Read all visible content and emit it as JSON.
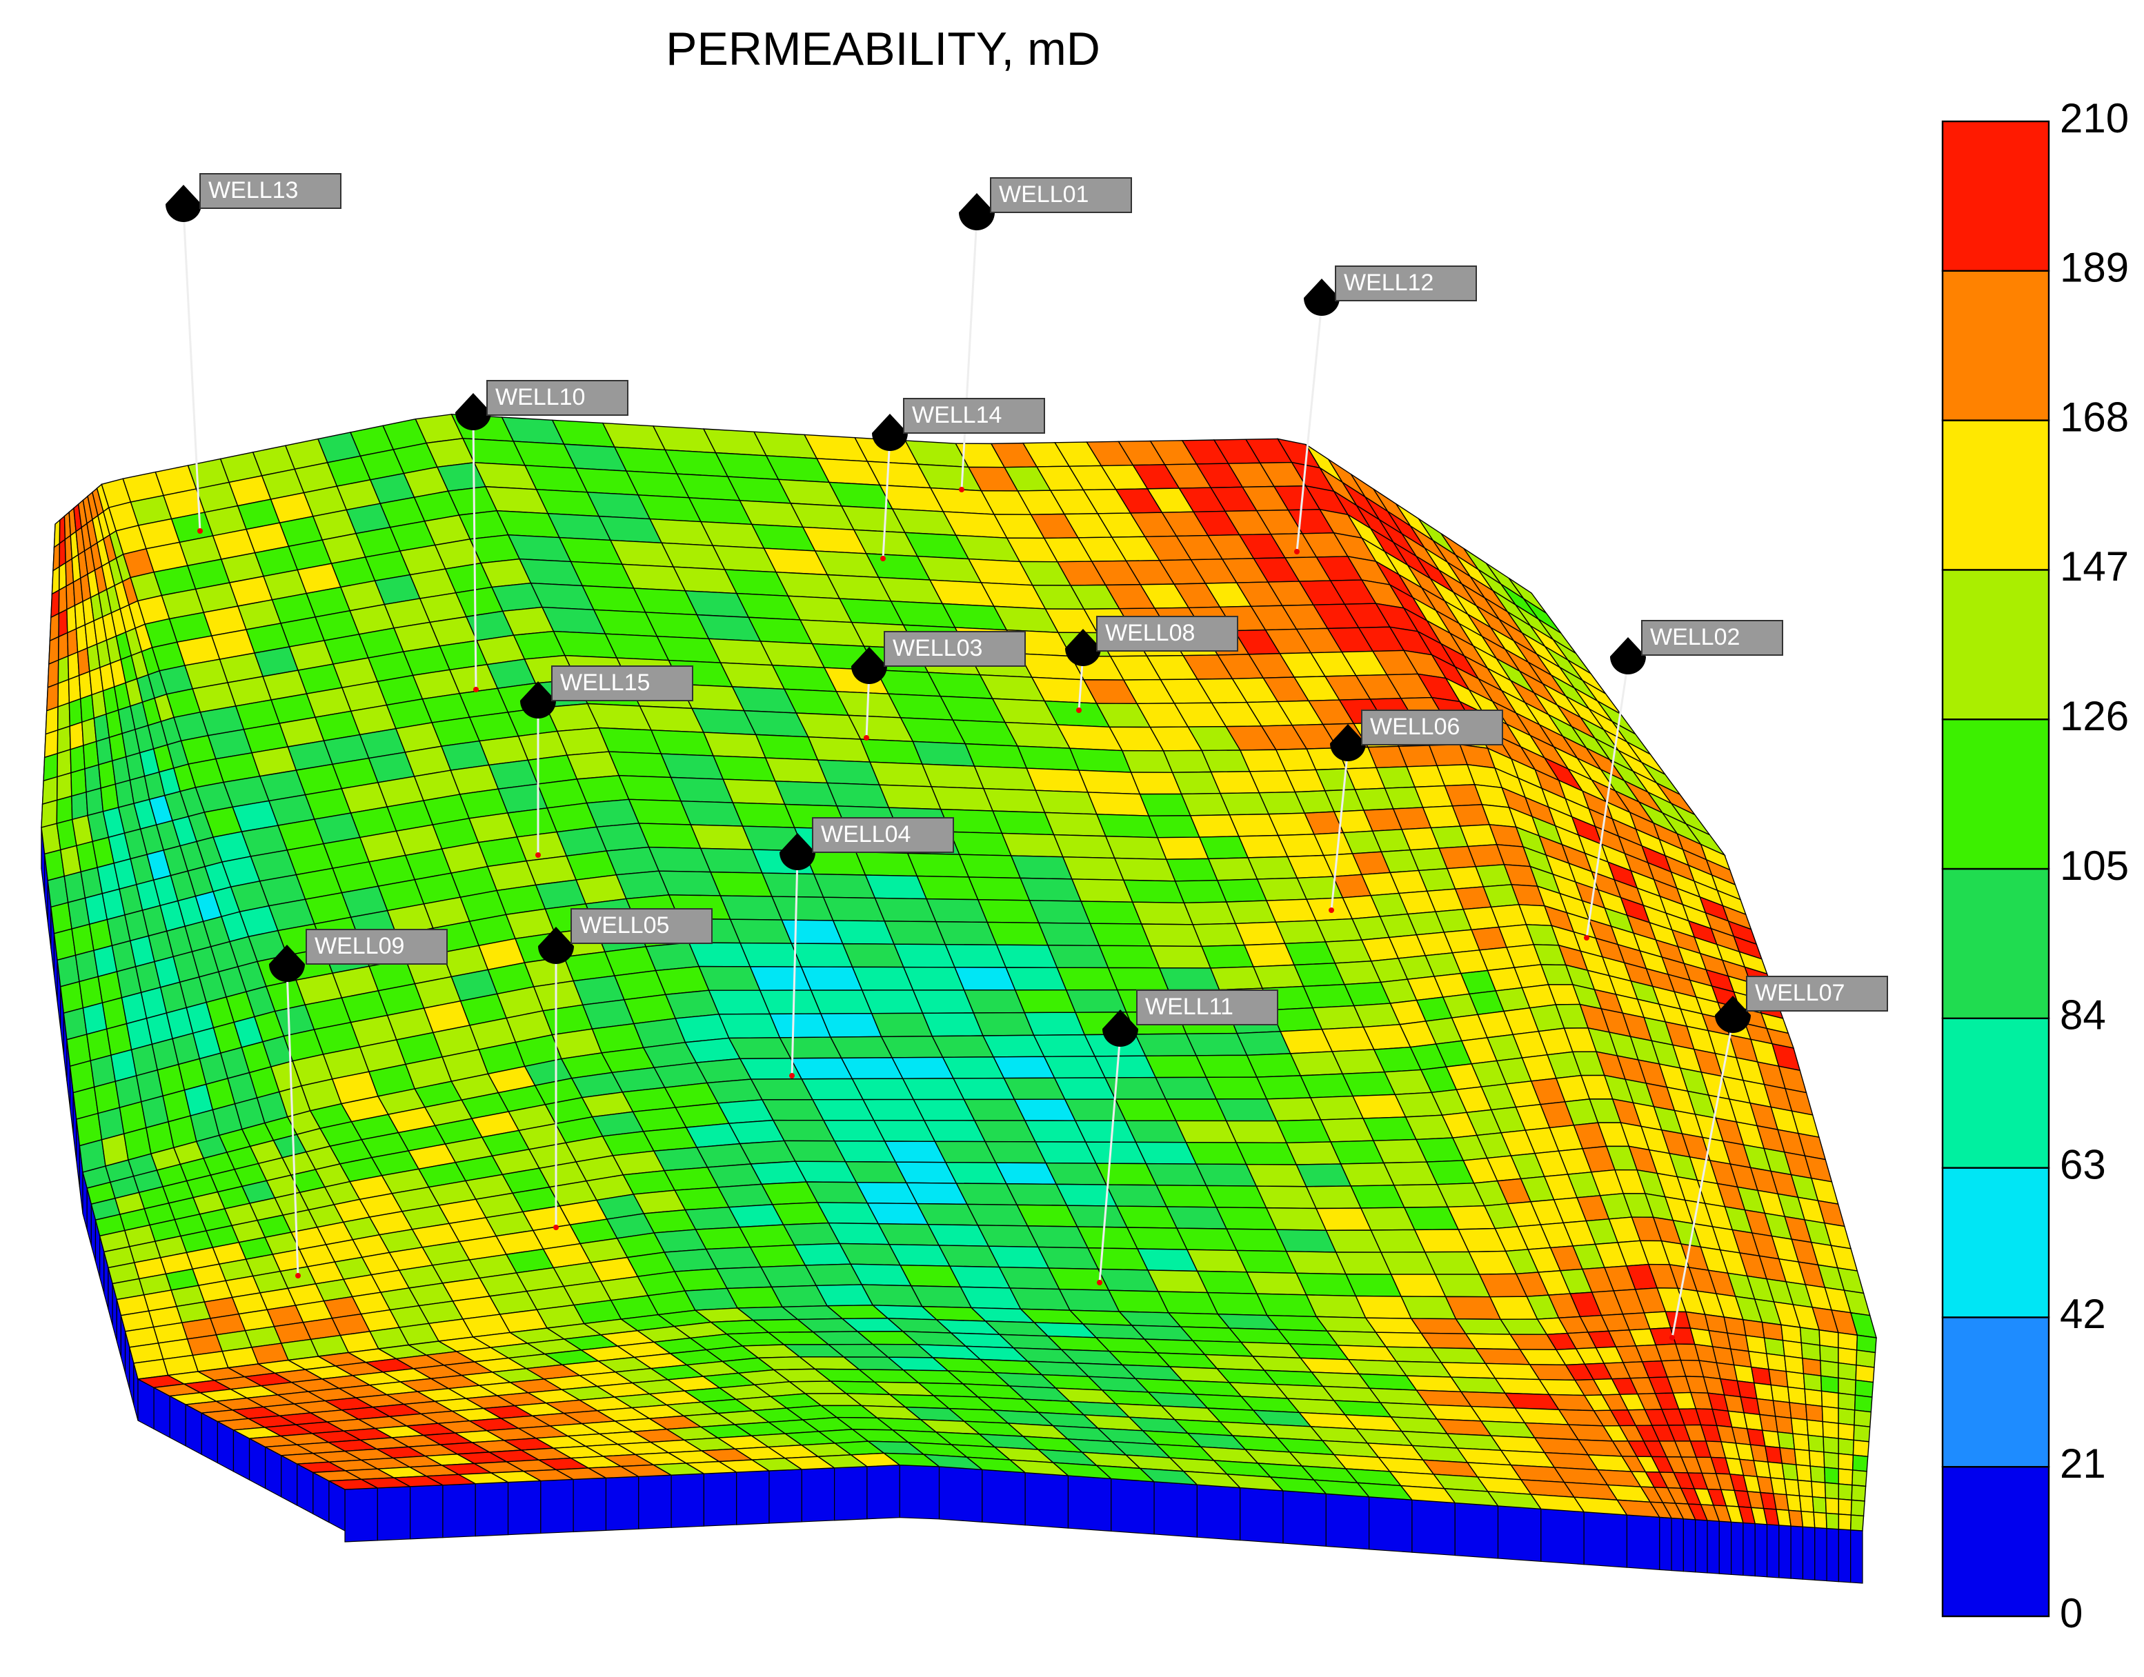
{
  "title": "PERMEABILITY, mD",
  "colorbar": {
    "ticks": [
      0,
      21,
      42,
      63,
      84,
      105,
      126,
      147,
      168,
      189,
      210
    ],
    "colors": [
      "#0000ee",
      "#1e8cff",
      "#00e6f5",
      "#00f0a0",
      "#20dc50",
      "#3cf000",
      "#aaee00",
      "#ffe800",
      "#ff8200",
      "#ff1a00"
    ]
  },
  "wells": [
    {
      "label": "WELL13"
    },
    {
      "label": "WELL01"
    },
    {
      "label": "WELL12"
    },
    {
      "label": "WELL10"
    },
    {
      "label": "WELL14"
    },
    {
      "label": "WELL03"
    },
    {
      "label": "WELL08"
    },
    {
      "label": "WELL15"
    },
    {
      "label": "WELL02"
    },
    {
      "label": "WELL06"
    },
    {
      "label": "WELL04"
    },
    {
      "label": "WELL05"
    },
    {
      "label": "WELL09"
    },
    {
      "label": "WELL11"
    },
    {
      "label": "WELL07"
    }
  ]
}
